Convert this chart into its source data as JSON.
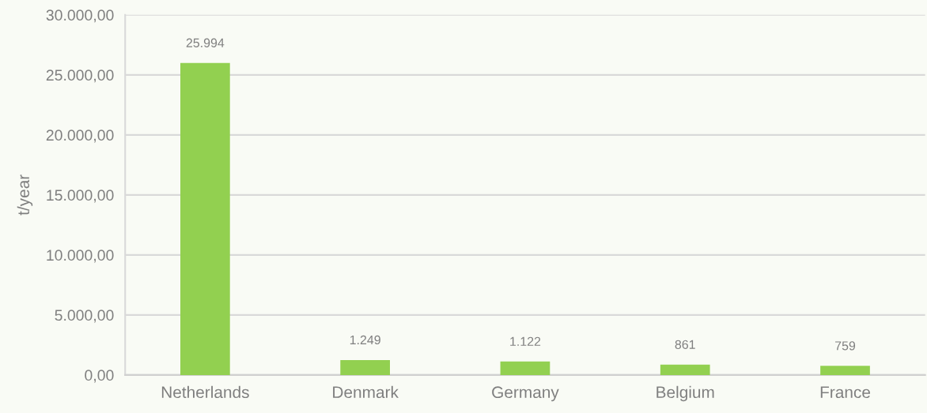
{
  "chart_data": {
    "type": "bar",
    "ylabel": "t/year",
    "categories": [
      "Netherlands",
      "Denmark",
      "Germany",
      "Belgium",
      "France"
    ],
    "values": [
      25994,
      1249,
      1122,
      861,
      759
    ],
    "value_labels": [
      "25.994",
      "1.249",
      "1.122",
      "861",
      "759"
    ],
    "color": "#92d050",
    "ylim": [
      0,
      30000
    ],
    "yticks": [
      {
        "value": 0,
        "label": "0,00"
      },
      {
        "value": 5000,
        "label": "5.000,00"
      },
      {
        "value": 10000,
        "label": "10.000,00"
      },
      {
        "value": 15000,
        "label": "15.000,00"
      },
      {
        "value": 20000,
        "label": "20.000,00"
      },
      {
        "value": 25000,
        "label": "25.000,00"
      },
      {
        "value": 30000,
        "label": "30.000,00"
      }
    ],
    "grid": "y",
    "legend": false
  }
}
